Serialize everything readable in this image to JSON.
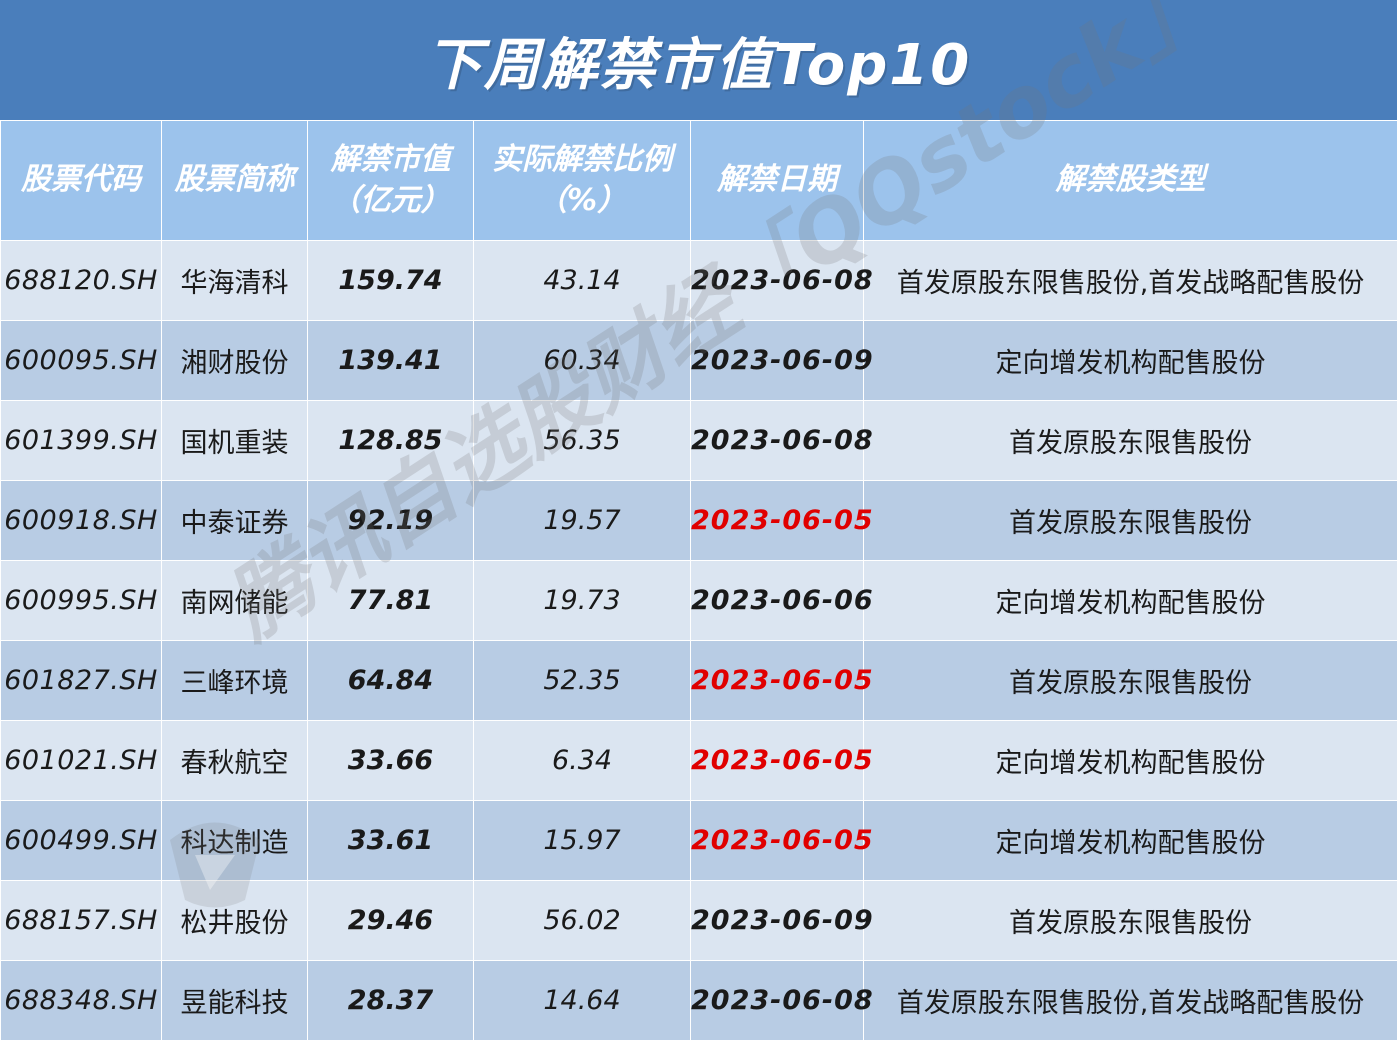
{
  "title": "下周解禁市值Top10",
  "watermark": "腾讯自选股财经「QQstock」",
  "colors": {
    "title_bg": "#4a7ebb",
    "header_bg": "#9cc3ec",
    "row_light": "#dbe5f1",
    "row_dark": "#b8cce4",
    "highlight_date": "#e00000"
  },
  "chart_data": {
    "type": "table",
    "title": "下周解禁市值Top10",
    "columns": [
      "股票代码",
      "股票简称",
      "解禁市值（亿元）",
      "实际解禁比例（%）",
      "解禁日期",
      "解禁股类型"
    ],
    "rows": [
      {
        "code": "688120.SH",
        "name": "华海清科",
        "value": "159.74",
        "ratio": "43.14",
        "date": "2023-06-08",
        "date_highlight": false,
        "type": "首发原股东限售股份,首发战略配售股份"
      },
      {
        "code": "600095.SH",
        "name": "湘财股份",
        "value": "139.41",
        "ratio": "60.34",
        "date": "2023-06-09",
        "date_highlight": false,
        "type": "定向增发机构配售股份"
      },
      {
        "code": "601399.SH",
        "name": "国机重装",
        "value": "128.85",
        "ratio": "56.35",
        "date": "2023-06-08",
        "date_highlight": false,
        "type": "首发原股东限售股份"
      },
      {
        "code": "600918.SH",
        "name": "中泰证券",
        "value": "92.19",
        "ratio": "19.57",
        "date": "2023-06-05",
        "date_highlight": true,
        "type": "首发原股东限售股份"
      },
      {
        "code": "600995.SH",
        "name": "南网储能",
        "value": "77.81",
        "ratio": "19.73",
        "date": "2023-06-06",
        "date_highlight": false,
        "type": "定向增发机构配售股份"
      },
      {
        "code": "601827.SH",
        "name": "三峰环境",
        "value": "64.84",
        "ratio": "52.35",
        "date": "2023-06-05",
        "date_highlight": true,
        "type": "首发原股东限售股份"
      },
      {
        "code": "601021.SH",
        "name": "春秋航空",
        "value": "33.66",
        "ratio": "6.34",
        "date": "2023-06-05",
        "date_highlight": true,
        "type": "定向增发机构配售股份"
      },
      {
        "code": "600499.SH",
        "name": "科达制造",
        "value": "33.61",
        "ratio": "15.97",
        "date": "2023-06-05",
        "date_highlight": true,
        "type": "定向增发机构配售股份"
      },
      {
        "code": "688157.SH",
        "name": "松井股份",
        "value": "29.46",
        "ratio": "56.02",
        "date": "2023-06-09",
        "date_highlight": false,
        "type": "首发原股东限售股份"
      },
      {
        "code": "688348.SH",
        "name": "昱能科技",
        "value": "28.37",
        "ratio": "14.64",
        "date": "2023-06-08",
        "date_highlight": false,
        "type": "首发原股东限售股份,首发战略配售股份"
      }
    ]
  }
}
